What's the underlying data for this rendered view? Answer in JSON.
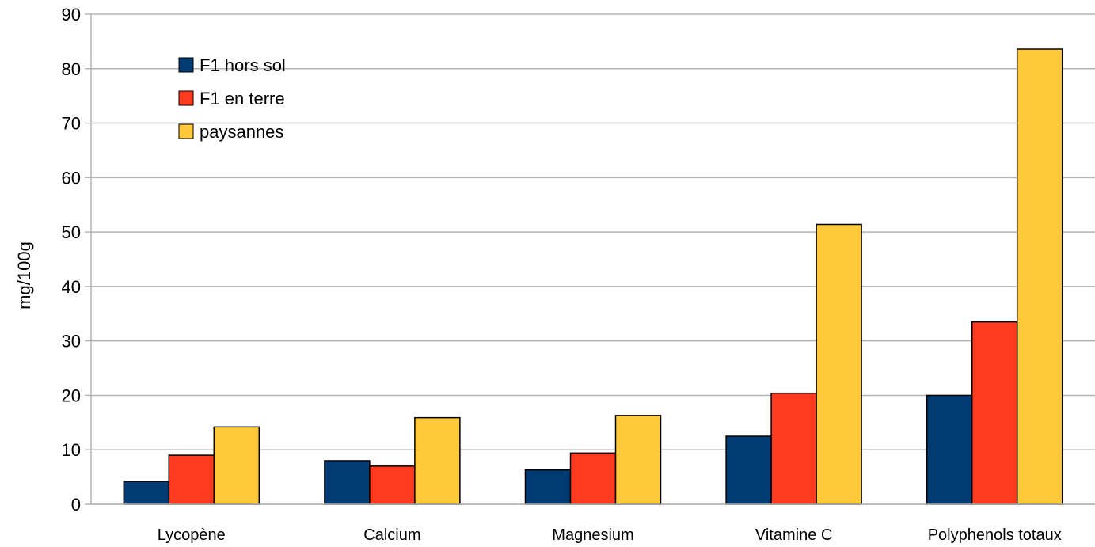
{
  "chart_data": {
    "type": "bar",
    "title": "",
    "xlabel": "",
    "ylabel": "mg/100g",
    "ylim": [
      0,
      90
    ],
    "yticks": [
      0,
      10,
      20,
      30,
      40,
      50,
      60,
      70,
      80,
      90
    ],
    "grid": "horizontal",
    "legend_position": "top-left",
    "categories": [
      "Lycopène",
      "Calcium",
      "Magnesium",
      "Vitamine C",
      "Polyphenols totaux"
    ],
    "series": [
      {
        "name": "F1 hors sol",
        "color": "#003b73",
        "values": [
          4.2,
          8.0,
          6.3,
          12.5,
          20.0
        ]
      },
      {
        "name": "F1 en terre",
        "color": "#ff3a1e",
        "values": [
          9.0,
          7.0,
          9.4,
          20.4,
          33.5
        ]
      },
      {
        "name": "paysannes",
        "color": "#ffc93a",
        "values": [
          14.2,
          15.9,
          16.3,
          51.4,
          83.6
        ]
      }
    ]
  }
}
